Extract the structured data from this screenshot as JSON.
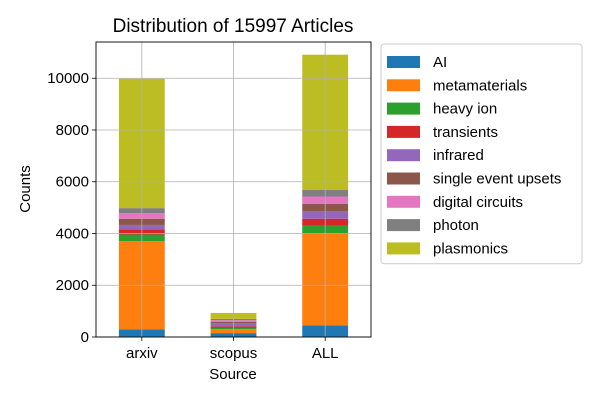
{
  "chart_data": {
    "type": "bar",
    "stacked": true,
    "title": "Distribution of 15997 Articles",
    "xlabel": "Source",
    "ylabel": "Counts",
    "categories": [
      "arxiv",
      "scopus",
      "ALL"
    ],
    "ylim": [
      0,
      11400
    ],
    "yticks": [
      0,
      2000,
      4000,
      6000,
      8000,
      10000
    ],
    "ytick_labels": [
      "0",
      "2000",
      "4000",
      "6000",
      "8000",
      "10000"
    ],
    "grid": true,
    "legend_position": "outside right, top",
    "series": [
      {
        "name": "AI",
        "color": "#1f77b4",
        "values": [
          300,
          150,
          450
        ]
      },
      {
        "name": "metamaterials",
        "color": "#ff7f0e",
        "values": [
          3400,
          150,
          3550
        ]
      },
      {
        "name": "heavy ion",
        "color": "#2ca02c",
        "values": [
          260,
          50,
          310
        ]
      },
      {
        "name": "transients",
        "color": "#d62728",
        "values": [
          200,
          60,
          260
        ]
      },
      {
        "name": "infrared",
        "color": "#9467bd",
        "values": [
          170,
          130,
          300
        ]
      },
      {
        "name": "single event upsets",
        "color": "#8c564b",
        "values": [
          240,
          40,
          280
        ]
      },
      {
        "name": "digital circuits",
        "color": "#e377c2",
        "values": [
          210,
          70,
          280
        ]
      },
      {
        "name": "photon",
        "color": "#7f7f7f",
        "values": [
          200,
          50,
          250
        ]
      },
      {
        "name": "plasmonics",
        "color": "#bcbd22",
        "values": [
          5000,
          230,
          5230
        ]
      }
    ]
  }
}
